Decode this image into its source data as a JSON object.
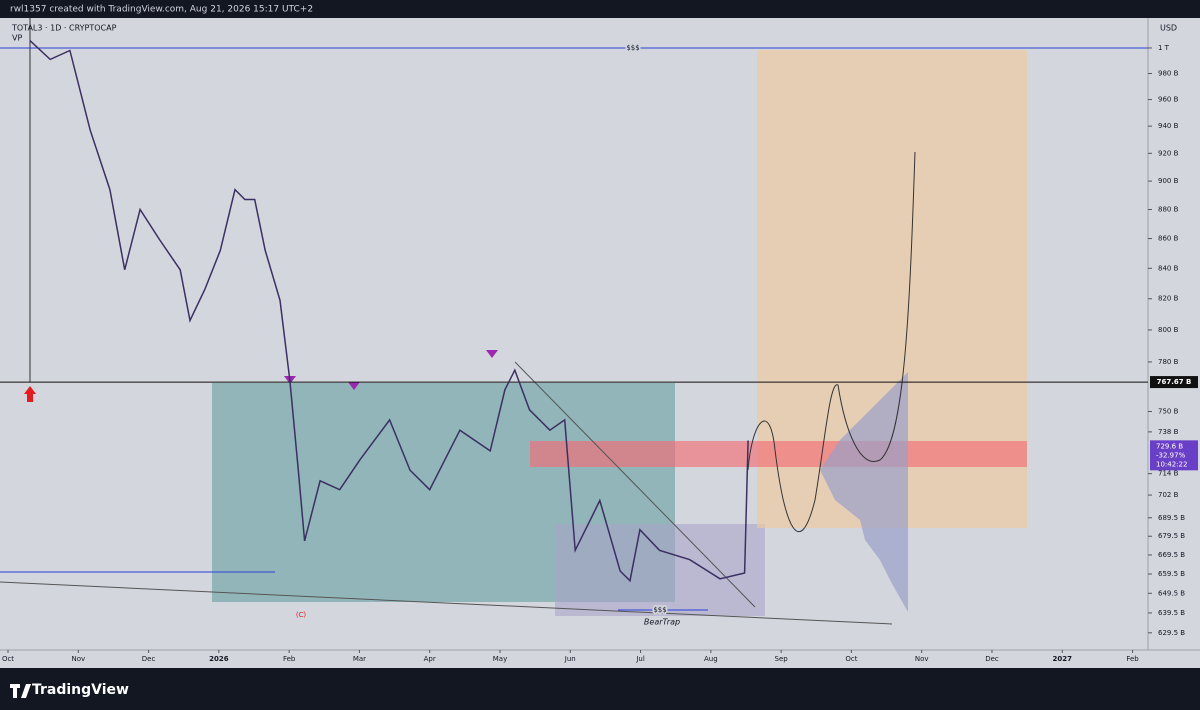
{
  "header": {
    "text": "rwl1357 created with TradingView.com, Aug 21, 2026 15:17 UTC+2"
  },
  "footer": {
    "brand": "TradingView"
  },
  "chart_data": {
    "type": "line",
    "title": "TOTAL3 · 1D · CRYPTOCAP",
    "indicator": "VP",
    "currency": "USD",
    "log_scale": true,
    "grid": false,
    "series": [
      {
        "name": "TOTAL3",
        "color": "#3b2f63",
        "x": [
          0.31,
          0.6,
          0.88,
          1.17,
          1.45,
          1.66,
          1.88,
          2.16,
          2.45,
          2.59,
          2.8,
          3.02,
          3.23,
          3.37,
          3.51,
          3.66,
          3.87,
          4.01,
          4.13,
          4.22,
          4.44,
          4.72,
          5.01,
          5.43,
          5.72,
          6.0,
          6.43,
          6.86,
          7.07,
          7.21,
          7.42,
          7.71,
          7.92,
          8.07,
          8.28,
          8.42,
          8.71,
          8.85,
          8.99,
          9.27,
          9.7,
          10.13,
          10.48,
          10.53
        ],
        "values": [
          1006,
          991,
          998,
          937,
          894,
          839,
          880,
          859,
          839,
          806,
          826,
          852,
          894,
          887,
          887,
          852,
          819,
          769,
          716,
          677,
          710,
          705,
          722,
          745,
          716,
          705,
          739,
          727,
          763,
          775,
          751,
          739,
          745,
          672,
          688,
          699,
          661,
          656,
          683,
          672,
          667,
          657,
          660,
          733
        ]
      }
    ],
    "xlim": [
      -0.114,
      16.22
    ],
    "xticks": [
      {
        "value": 0,
        "label": "Oct"
      },
      {
        "value": 1,
        "label": "Nov"
      },
      {
        "value": 2,
        "label": "Dec"
      },
      {
        "value": 3,
        "label": "2026"
      },
      {
        "value": 4,
        "label": "Feb"
      },
      {
        "value": 5,
        "label": "Mar"
      },
      {
        "value": 6,
        "label": "Apr"
      },
      {
        "value": 7,
        "label": "May"
      },
      {
        "value": 8,
        "label": "Jun"
      },
      {
        "value": 9,
        "label": "Jul"
      },
      {
        "value": 10,
        "label": "Aug"
      },
      {
        "value": 11,
        "label": "Sep"
      },
      {
        "value": 12,
        "label": "Oct"
      },
      {
        "value": 13,
        "label": "Nov"
      },
      {
        "value": 14,
        "label": "Dec"
      },
      {
        "value": 15,
        "label": "2027"
      },
      {
        "value": 16,
        "label": "Feb"
      }
    ],
    "ylim": [
      621,
      1024
    ],
    "yticks": [
      {
        "value": 1000,
        "label": "1 T"
      },
      {
        "value": 980,
        "label": "980 B"
      },
      {
        "value": 960,
        "label": "960 B"
      },
      {
        "value": 940,
        "label": "940 B"
      },
      {
        "value": 920,
        "label": "920 B"
      },
      {
        "value": 900,
        "label": "900 B"
      },
      {
        "value": 880,
        "label": "880 B"
      },
      {
        "value": 860,
        "label": "860 B"
      },
      {
        "value": 840,
        "label": "840 B"
      },
      {
        "value": 820,
        "label": "820 B"
      },
      {
        "value": 800,
        "label": "800 B"
      },
      {
        "value": 780,
        "label": "780 B"
      },
      {
        "value": 750,
        "label": "750 B"
      },
      {
        "value": 738,
        "label": "738 B"
      },
      {
        "value": 714,
        "label": "714 B"
      },
      {
        "value": 702,
        "label": "702 B"
      },
      {
        "value": 689.5,
        "label": "689.5 B"
      },
      {
        "value": 679.5,
        "label": "679.5 B"
      },
      {
        "value": 669.5,
        "label": "669.5 B"
      },
      {
        "value": 659.5,
        "label": "659.5 B"
      },
      {
        "value": 649.5,
        "label": "649.5 B"
      },
      {
        "value": 639.5,
        "label": "639.5 B"
      },
      {
        "value": 629.5,
        "label": "629.5 B"
      }
    ],
    "levels": [
      {
        "value": 1000,
        "label": "$$$",
        "color": "#2a3fd6"
      },
      {
        "value": 641,
        "label": "$$$",
        "color": "#2a3fd6"
      }
    ],
    "marked_level": {
      "value": 767.67,
      "label": "767.67 B"
    },
    "last_price": {
      "value": 729.6,
      "label": "729.6 B",
      "change": "-32.97%",
      "countdown": "10:42:22"
    },
    "annotations": [
      "(C)",
      "BearTrap"
    ]
  }
}
